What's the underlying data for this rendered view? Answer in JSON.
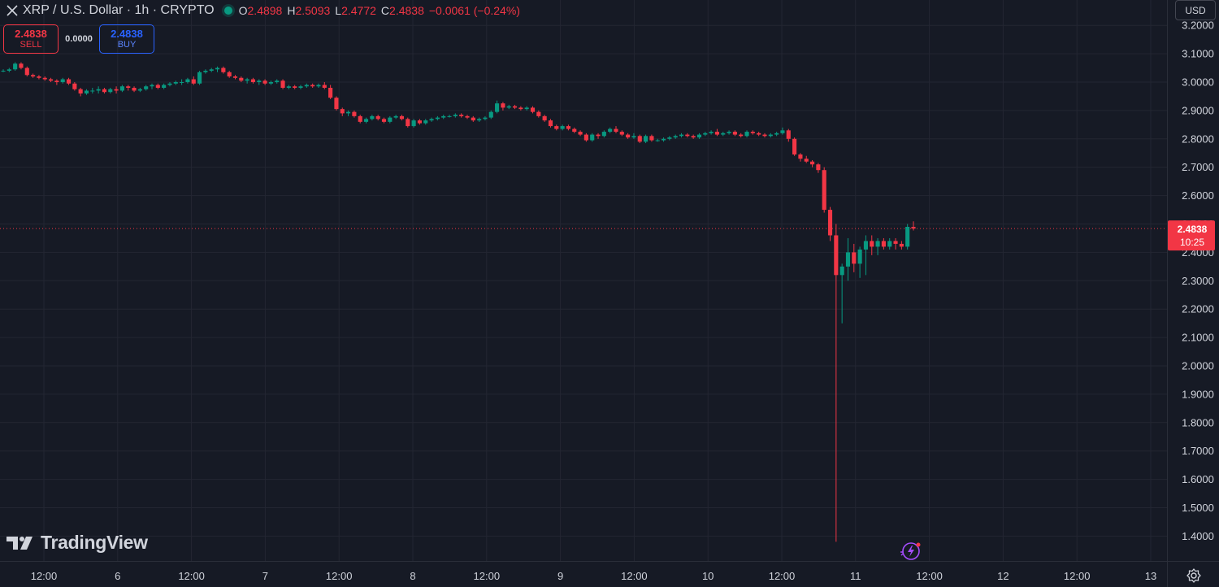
{
  "header": {
    "symbol": "XRP / U.S. Dollar · 1h · CRYPTO",
    "o_label": "O",
    "o_value": "2.4898",
    "h_label": "H",
    "h_value": "2.5093",
    "l_label": "L",
    "l_value": "2.4772",
    "c_label": "C",
    "c_value": "2.4838",
    "change": "−0.0061 (−0.24%)"
  },
  "trade": {
    "sell_price": "2.4838",
    "sell_label": "SELL",
    "spread": "0.0000",
    "buy_price": "2.4838",
    "buy_label": "BUY"
  },
  "currency": "USD",
  "price_label": {
    "price": "2.4838",
    "countdown": "10:25"
  },
  "brand": "TradingView",
  "colors": {
    "up": "#089981",
    "down": "#f23645",
    "background": "#161a25",
    "grid": "#232632",
    "text": "#d1d4dc"
  },
  "chart_data": {
    "type": "candlestick",
    "interval": "1h",
    "ylim": [
      1.35,
      3.23
    ],
    "y_ticks": [
      "1.4000",
      "1.5000",
      "1.6000",
      "1.7000",
      "1.8000",
      "1.9000",
      "2.0000",
      "2.1000",
      "2.2000",
      "2.3000",
      "2.4000",
      "2.5000",
      "2.6000",
      "2.7000",
      "2.8000",
      "2.9000",
      "3.0000",
      "3.1000",
      "3.2000"
    ],
    "x_ticks": [
      "12:00",
      "6",
      "12:00",
      "7",
      "12:00",
      "8",
      "12:00",
      "9",
      "12:00",
      "10",
      "12:00",
      "11",
      "12:00",
      "12",
      "12:00",
      "13"
    ],
    "last_price": 2.4838,
    "candles": [
      [
        3.04,
        3.045,
        3.035,
        3.04
      ],
      [
        3.04,
        3.05,
        3.035,
        3.045
      ],
      [
        3.045,
        3.07,
        3.04,
        3.065
      ],
      [
        3.065,
        3.07,
        3.045,
        3.05
      ],
      [
        3.05,
        3.055,
        3.02,
        3.025
      ],
      [
        3.025,
        3.03,
        3.015,
        3.02
      ],
      [
        3.02,
        3.025,
        3.01,
        3.015
      ],
      [
        3.015,
        3.02,
        3.005,
        3.01
      ],
      [
        3.01,
        3.015,
        3.0,
        3.005
      ],
      [
        3.005,
        3.01,
        2.99,
        3.0
      ],
      [
        3.0,
        3.015,
        2.995,
        3.01
      ],
      [
        3.01,
        3.015,
        2.99,
        2.995
      ],
      [
        2.995,
        3.0,
        2.97,
        2.975
      ],
      [
        2.975,
        2.98,
        2.95,
        2.96
      ],
      [
        2.96,
        2.975,
        2.955,
        2.97
      ],
      [
        2.97,
        2.98,
        2.96,
        2.97
      ],
      [
        2.97,
        2.985,
        2.96,
        2.975
      ],
      [
        2.975,
        2.98,
        2.96,
        2.965
      ],
      [
        2.965,
        2.98,
        2.96,
        2.975
      ],
      [
        2.975,
        2.985,
        2.96,
        2.97
      ],
      [
        2.97,
        2.99,
        2.965,
        2.985
      ],
      [
        2.985,
        2.99,
        2.97,
        2.98
      ],
      [
        2.98,
        2.985,
        2.965,
        2.97
      ],
      [
        2.97,
        2.98,
        2.965,
        2.975
      ],
      [
        2.975,
        2.99,
        2.97,
        2.985
      ],
      [
        2.985,
        2.995,
        2.975,
        2.99
      ],
      [
        2.99,
        2.995,
        2.975,
        2.98
      ],
      [
        2.98,
        2.995,
        2.975,
        2.99
      ],
      [
        2.99,
        3.0,
        2.985,
        2.995
      ],
      [
        2.995,
        3.005,
        2.99,
        3.0
      ],
      [
        3.0,
        3.01,
        2.99,
        3.0
      ],
      [
        3.0,
        3.015,
        2.995,
        3.01
      ],
      [
        3.01,
        3.02,
        2.99,
        2.995
      ],
      [
        2.995,
        3.04,
        2.99,
        3.035
      ],
      [
        3.035,
        3.045,
        3.03,
        3.04
      ],
      [
        3.04,
        3.05,
        3.035,
        3.045
      ],
      [
        3.045,
        3.055,
        3.035,
        3.05
      ],
      [
        3.05,
        3.055,
        3.03,
        3.035
      ],
      [
        3.035,
        3.04,
        3.015,
        3.02
      ],
      [
        3.02,
        3.025,
        3.01,
        3.015
      ],
      [
        3.015,
        3.02,
        3.0,
        3.005
      ],
      [
        3.005,
        3.015,
        2.995,
        3.01
      ],
      [
        3.01,
        3.015,
        2.995,
        3.0
      ],
      [
        3.0,
        3.01,
        2.99,
        3.005
      ],
      [
        3.005,
        3.01,
        2.99,
        2.995
      ],
      [
        2.995,
        3.005,
        2.99,
        3.0
      ],
      [
        3.0,
        3.01,
        2.995,
        3.005
      ],
      [
        3.005,
        3.01,
        2.975,
        2.98
      ],
      [
        2.98,
        2.99,
        2.975,
        2.985
      ],
      [
        2.985,
        2.99,
        2.975,
        2.98
      ],
      [
        2.98,
        2.99,
        2.975,
        2.985
      ],
      [
        2.985,
        2.995,
        2.98,
        2.99
      ],
      [
        2.99,
        2.995,
        2.98,
        2.985
      ],
      [
        2.985,
        2.995,
        2.98,
        2.99
      ],
      [
        2.99,
        3.0,
        2.975,
        2.98
      ],
      [
        2.98,
        2.99,
        2.94,
        2.945
      ],
      [
        2.945,
        2.95,
        2.9,
        2.905
      ],
      [
        2.905,
        2.91,
        2.88,
        2.89
      ],
      [
        2.89,
        2.9,
        2.88,
        2.895
      ],
      [
        2.895,
        2.9,
        2.875,
        2.88
      ],
      [
        2.88,
        2.885,
        2.855,
        2.86
      ],
      [
        2.86,
        2.875,
        2.855,
        2.87
      ],
      [
        2.87,
        2.885,
        2.865,
        2.88
      ],
      [
        2.88,
        2.885,
        2.865,
        2.87
      ],
      [
        2.87,
        2.875,
        2.855,
        2.86
      ],
      [
        2.86,
        2.88,
        2.855,
        2.875
      ],
      [
        2.875,
        2.885,
        2.87,
        2.88
      ],
      [
        2.88,
        2.885,
        2.865,
        2.87
      ],
      [
        2.87,
        2.875,
        2.84,
        2.845
      ],
      [
        2.845,
        2.87,
        2.84,
        2.865
      ],
      [
        2.865,
        2.87,
        2.85,
        2.855
      ],
      [
        2.855,
        2.87,
        2.85,
        2.865
      ],
      [
        2.865,
        2.875,
        2.86,
        2.87
      ],
      [
        2.87,
        2.88,
        2.865,
        2.875
      ],
      [
        2.875,
        2.885,
        2.87,
        2.88
      ],
      [
        2.88,
        2.885,
        2.875,
        2.88
      ],
      [
        2.88,
        2.89,
        2.875,
        2.885
      ],
      [
        2.885,
        2.89,
        2.875,
        2.88
      ],
      [
        2.88,
        2.885,
        2.87,
        2.875
      ],
      [
        2.875,
        2.88,
        2.86,
        2.865
      ],
      [
        2.865,
        2.875,
        2.86,
        2.87
      ],
      [
        2.87,
        2.88,
        2.865,
        2.875
      ],
      [
        2.875,
        2.9,
        2.87,
        2.895
      ],
      [
        2.895,
        2.935,
        2.89,
        2.925
      ],
      [
        2.925,
        2.93,
        2.9,
        2.91
      ],
      [
        2.91,
        2.92,
        2.905,
        2.915
      ],
      [
        2.915,
        2.92,
        2.905,
        2.91
      ],
      [
        2.91,
        2.915,
        2.9,
        2.905
      ],
      [
        2.905,
        2.915,
        2.9,
        2.91
      ],
      [
        2.91,
        2.915,
        2.89,
        2.895
      ],
      [
        2.895,
        2.9,
        2.875,
        2.88
      ],
      [
        2.88,
        2.885,
        2.86,
        2.865
      ],
      [
        2.865,
        2.87,
        2.84,
        2.845
      ],
      [
        2.845,
        2.85,
        2.83,
        2.835
      ],
      [
        2.835,
        2.85,
        2.83,
        2.845
      ],
      [
        2.845,
        2.85,
        2.83,
        2.835
      ],
      [
        2.835,
        2.84,
        2.82,
        2.825
      ],
      [
        2.825,
        2.83,
        2.81,
        2.815
      ],
      [
        2.815,
        2.82,
        2.79,
        2.795
      ],
      [
        2.795,
        2.82,
        2.79,
        2.815
      ],
      [
        2.815,
        2.82,
        2.8,
        2.81
      ],
      [
        2.81,
        2.83,
        2.805,
        2.825
      ],
      [
        2.825,
        2.84,
        2.82,
        2.835
      ],
      [
        2.835,
        2.845,
        2.82,
        2.825
      ],
      [
        2.825,
        2.83,
        2.81,
        2.815
      ],
      [
        2.815,
        2.82,
        2.8,
        2.805
      ],
      [
        2.805,
        2.82,
        2.8,
        2.81
      ],
      [
        2.81,
        2.815,
        2.785,
        2.79
      ],
      [
        2.79,
        2.815,
        2.785,
        2.81
      ],
      [
        2.81,
        2.815,
        2.79,
        2.795
      ],
      [
        2.795,
        2.8,
        2.79,
        2.795
      ],
      [
        2.795,
        2.805,
        2.79,
        2.8
      ],
      [
        2.8,
        2.81,
        2.795,
        2.805
      ],
      [
        2.805,
        2.815,
        2.8,
        2.81
      ],
      [
        2.81,
        2.82,
        2.805,
        2.815
      ],
      [
        2.815,
        2.82,
        2.805,
        2.81
      ],
      [
        2.81,
        2.815,
        2.8,
        2.805
      ],
      [
        2.805,
        2.82,
        2.8,
        2.815
      ],
      [
        2.815,
        2.825,
        2.81,
        2.82
      ],
      [
        2.82,
        2.83,
        2.815,
        2.825
      ],
      [
        2.825,
        2.835,
        2.81,
        2.815
      ],
      [
        2.815,
        2.825,
        2.81,
        2.82
      ],
      [
        2.82,
        2.83,
        2.815,
        2.825
      ],
      [
        2.825,
        2.83,
        2.81,
        2.815
      ],
      [
        2.815,
        2.82,
        2.805,
        2.81
      ],
      [
        2.81,
        2.83,
        2.805,
        2.825
      ],
      [
        2.825,
        2.83,
        2.815,
        2.82
      ],
      [
        2.82,
        2.825,
        2.81,
        2.815
      ],
      [
        2.815,
        2.82,
        2.805,
        2.81
      ],
      [
        2.81,
        2.82,
        2.805,
        2.815
      ],
      [
        2.815,
        2.825,
        2.81,
        2.82
      ],
      [
        2.82,
        2.84,
        2.815,
        2.83
      ],
      [
        2.83,
        2.835,
        2.79,
        2.8
      ],
      [
        2.8,
        2.805,
        2.74,
        2.745
      ],
      [
        2.745,
        2.75,
        2.72,
        2.73
      ],
      [
        2.73,
        2.74,
        2.715,
        2.72
      ],
      [
        2.72,
        2.725,
        2.7,
        2.71
      ],
      [
        2.71,
        2.715,
        2.68,
        2.69
      ],
      [
        2.69,
        2.7,
        2.54,
        2.55
      ],
      [
        2.55,
        2.56,
        2.44,
        2.46
      ],
      [
        2.46,
        2.5,
        1.38,
        2.32
      ],
      [
        2.32,
        2.36,
        2.15,
        2.35
      ],
      [
        2.35,
        2.45,
        2.3,
        2.4
      ],
      [
        2.4,
        2.43,
        2.33,
        2.36
      ],
      [
        2.36,
        2.42,
        2.31,
        2.41
      ],
      [
        2.41,
        2.46,
        2.32,
        2.44
      ],
      [
        2.44,
        2.46,
        2.39,
        2.42
      ],
      [
        2.42,
        2.45,
        2.39,
        2.44
      ],
      [
        2.44,
        2.45,
        2.41,
        2.42
      ],
      [
        2.42,
        2.45,
        2.41,
        2.44
      ],
      [
        2.44,
        2.45,
        2.41,
        2.43
      ],
      [
        2.43,
        2.44,
        2.41,
        2.42
      ],
      [
        2.42,
        2.5,
        2.41,
        2.49
      ],
      [
        2.4898,
        2.5093,
        2.4772,
        2.4838
      ]
    ]
  }
}
